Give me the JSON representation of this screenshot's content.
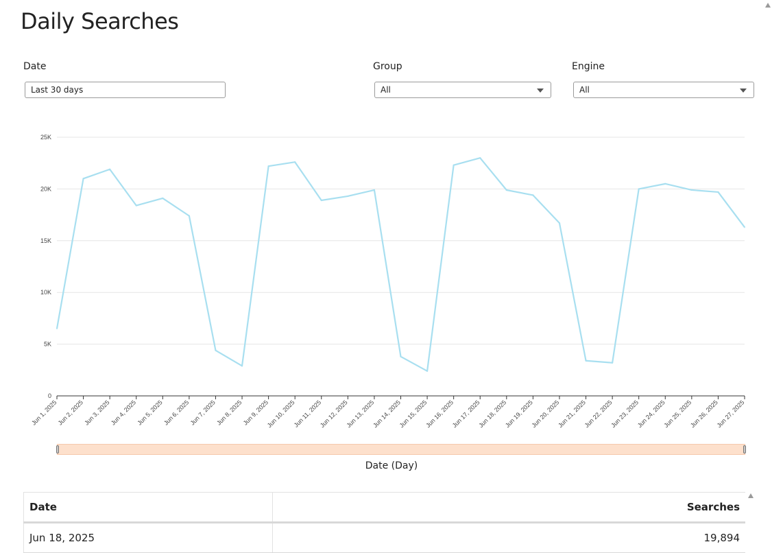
{
  "page": {
    "title": "Daily Searches"
  },
  "filters": {
    "date": {
      "label": "Date",
      "value": "Last 30 days"
    },
    "group": {
      "label": "Group",
      "value": "All"
    },
    "engine": {
      "label": "Engine",
      "value": "All"
    }
  },
  "chart_data": {
    "type": "line",
    "title": "",
    "xlabel": "Date (Day)",
    "ylabel": "",
    "ylim": [
      0,
      25000
    ],
    "y_ticks": [
      0,
      5000,
      10000,
      15000,
      20000,
      25000
    ],
    "y_tick_labels": [
      "0",
      "5K",
      "10K",
      "15K",
      "20K",
      "25K"
    ],
    "grid": true,
    "color": "#a8dff0",
    "categories": [
      "Jun 1, 2025",
      "Jun 2, 2025",
      "Jun 3, 2025",
      "Jun 4, 2025",
      "Jun 5, 2025",
      "Jun 6, 2025",
      "Jun 7, 2025",
      "Jun 8, 2025",
      "Jun 9, 2025",
      "Jun 10, 2025",
      "Jun 11, 2025",
      "Jun 12, 2025",
      "Jun 13, 2025",
      "Jun 14, 2025",
      "Jun 15, 2025",
      "Jun 16, 2025",
      "Jun 17, 2025",
      "Jun 18, 2025",
      "Jun 19, 2025",
      "Jun 20, 2025",
      "Jun 21, 2025",
      "Jun 22, 2025",
      "Jun 23, 2025",
      "Jun 24, 2025",
      "Jun 25, 2025",
      "Jun 26, 2025",
      "Jun 27, 2025"
    ],
    "series": [
      {
        "values": [
          6500,
          21000,
          21900,
          18400,
          19100,
          17400,
          4400,
          2900,
          22200,
          22600,
          18900,
          19300,
          19900,
          3800,
          2400,
          22300,
          23000,
          19894,
          19400,
          16700,
          3400,
          3200,
          20000,
          20500,
          19900,
          19700,
          16300
        ]
      }
    ]
  },
  "table": {
    "headers": [
      "Date",
      "Searches"
    ],
    "rows": [
      [
        "Jun 18, 2025",
        "19,894"
      ]
    ]
  }
}
